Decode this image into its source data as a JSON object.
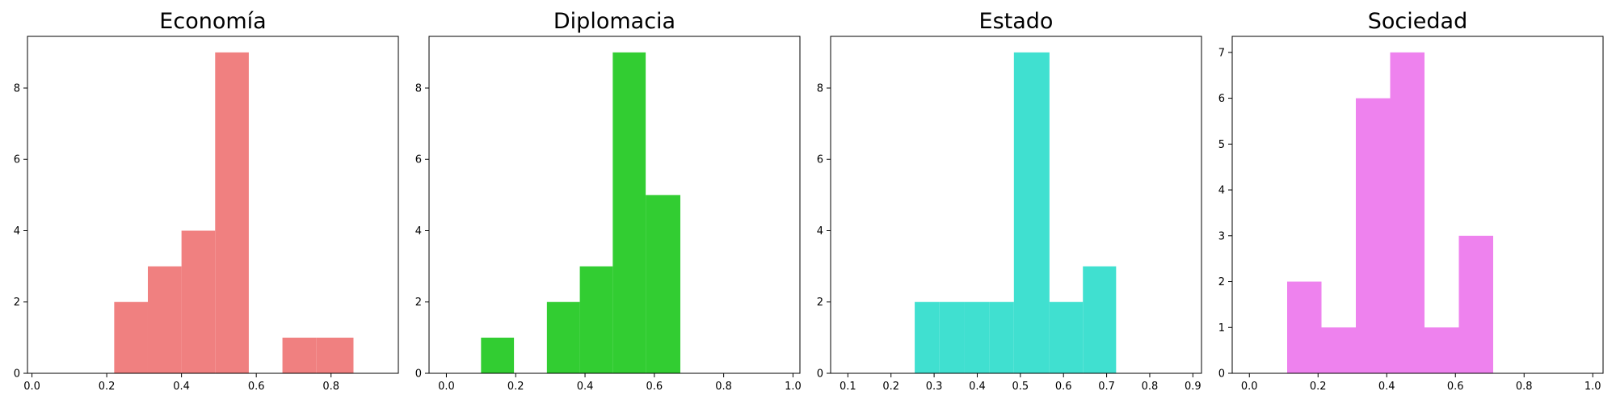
{
  "chart_data": [
    {
      "type": "bar",
      "title": "Economía",
      "color": "#F08080",
      "xlim": [
        -0.012,
        0.98
      ],
      "ylim": [
        0,
        9.45
      ],
      "bars": [
        {
          "x0": 0.22,
          "x1": 0.31,
          "value": 2
        },
        {
          "x0": 0.31,
          "x1": 0.4,
          "value": 3
        },
        {
          "x0": 0.4,
          "x1": 0.49,
          "value": 4
        },
        {
          "x0": 0.49,
          "x1": 0.58,
          "value": 9
        },
        {
          "x0": 0.58,
          "x1": 0.67,
          "value": 0
        },
        {
          "x0": 0.67,
          "x1": 0.76,
          "value": 1
        },
        {
          "x0": 0.76,
          "x1": 0.86,
          "value": 1
        }
      ],
      "xticks": [
        {
          "v": 0.0,
          "label": "0.0"
        },
        {
          "v": 0.2,
          "label": "0.2"
        },
        {
          "v": 0.4,
          "label": "0.4"
        },
        {
          "v": 0.6,
          "label": "0.6"
        },
        {
          "v": 0.8,
          "label": "0.8"
        }
      ],
      "yticks": [
        {
          "v": 0,
          "label": "0"
        },
        {
          "v": 2,
          "label": "2"
        },
        {
          "v": 4,
          "label": "4"
        },
        {
          "v": 6,
          "label": "6"
        },
        {
          "v": 8,
          "label": "8"
        }
      ]
    },
    {
      "type": "bar",
      "title": "Diplomacia",
      "color": "#32CD32",
      "xlim": [
        -0.05,
        1.02
      ],
      "ylim": [
        0,
        9.45
      ],
      "bars": [
        {
          "x0": 0.1,
          "x1": 0.195,
          "value": 1
        },
        {
          "x0": 0.195,
          "x1": 0.29,
          "value": 0
        },
        {
          "x0": 0.29,
          "x1": 0.385,
          "value": 2
        },
        {
          "x0": 0.385,
          "x1": 0.48,
          "value": 3
        },
        {
          "x0": 0.48,
          "x1": 0.575,
          "value": 9
        },
        {
          "x0": 0.575,
          "x1": 0.675,
          "value": 5
        }
      ],
      "xticks": [
        {
          "v": 0.0,
          "label": "0.0"
        },
        {
          "v": 0.2,
          "label": "0.2"
        },
        {
          "v": 0.4,
          "label": "0.4"
        },
        {
          "v": 0.6,
          "label": "0.6"
        },
        {
          "v": 0.8,
          "label": "0.8"
        },
        {
          "v": 1.0,
          "label": "1.0"
        }
      ],
      "yticks": [
        {
          "v": 0,
          "label": "0"
        },
        {
          "v": 2,
          "label": "2"
        },
        {
          "v": 4,
          "label": "4"
        },
        {
          "v": 6,
          "label": "6"
        },
        {
          "v": 8,
          "label": "8"
        }
      ]
    },
    {
      "type": "bar",
      "title": "Estado",
      "color": "#40E0D0",
      "xlim": [
        0.06,
        0.92
      ],
      "ylim": [
        0,
        9.45
      ],
      "bars": [
        {
          "x0": 0.255,
          "x1": 0.3125,
          "value": 2
        },
        {
          "x0": 0.3125,
          "x1": 0.37,
          "value": 2
        },
        {
          "x0": 0.37,
          "x1": 0.4275,
          "value": 2
        },
        {
          "x0": 0.4275,
          "x1": 0.485,
          "value": 2
        },
        {
          "x0": 0.485,
          "x1": 0.5675,
          "value": 9
        },
        {
          "x0": 0.5675,
          "x1": 0.645,
          "value": 2
        },
        {
          "x0": 0.645,
          "x1": 0.722,
          "value": 3
        }
      ],
      "xticks": [
        {
          "v": 0.1,
          "label": "0.1"
        },
        {
          "v": 0.2,
          "label": "0.2"
        },
        {
          "v": 0.3,
          "label": "0.3"
        },
        {
          "v": 0.4,
          "label": "0.4"
        },
        {
          "v": 0.5,
          "label": "0.5"
        },
        {
          "v": 0.6,
          "label": "0.6"
        },
        {
          "v": 0.7,
          "label": "0.7"
        },
        {
          "v": 0.8,
          "label": "0.8"
        },
        {
          "v": 0.9,
          "label": "0.9"
        }
      ],
      "yticks": [
        {
          "v": 0,
          "label": "0"
        },
        {
          "v": 2,
          "label": "2"
        },
        {
          "v": 4,
          "label": "4"
        },
        {
          "v": 6,
          "label": "6"
        },
        {
          "v": 8,
          "label": "8"
        }
      ]
    },
    {
      "type": "bar",
      "title": "Sociedad",
      "color": "#EE82EE",
      "xlim": [
        -0.05,
        1.03
      ],
      "ylim": [
        0,
        7.35
      ],
      "bars": [
        {
          "x0": 0.11,
          "x1": 0.21,
          "value": 2
        },
        {
          "x0": 0.21,
          "x1": 0.31,
          "value": 1
        },
        {
          "x0": 0.31,
          "x1": 0.41,
          "value": 6
        },
        {
          "x0": 0.41,
          "x1": 0.51,
          "value": 7
        },
        {
          "x0": 0.51,
          "x1": 0.61,
          "value": 1
        },
        {
          "x0": 0.61,
          "x1": 0.71,
          "value": 3
        }
      ],
      "xticks": [
        {
          "v": 0.0,
          "label": "0.0"
        },
        {
          "v": 0.2,
          "label": "0.2"
        },
        {
          "v": 0.4,
          "label": "0.4"
        },
        {
          "v": 0.6,
          "label": "0.6"
        },
        {
          "v": 0.8,
          "label": "0.8"
        },
        {
          "v": 1.0,
          "label": "1.0"
        }
      ],
      "yticks": [
        {
          "v": 0,
          "label": "0"
        },
        {
          "v": 1,
          "label": "1"
        },
        {
          "v": 2,
          "label": "2"
        },
        {
          "v": 3,
          "label": "3"
        },
        {
          "v": 4,
          "label": "4"
        },
        {
          "v": 5,
          "label": "5"
        },
        {
          "v": 6,
          "label": "6"
        },
        {
          "v": 7,
          "label": "7"
        }
      ]
    }
  ]
}
